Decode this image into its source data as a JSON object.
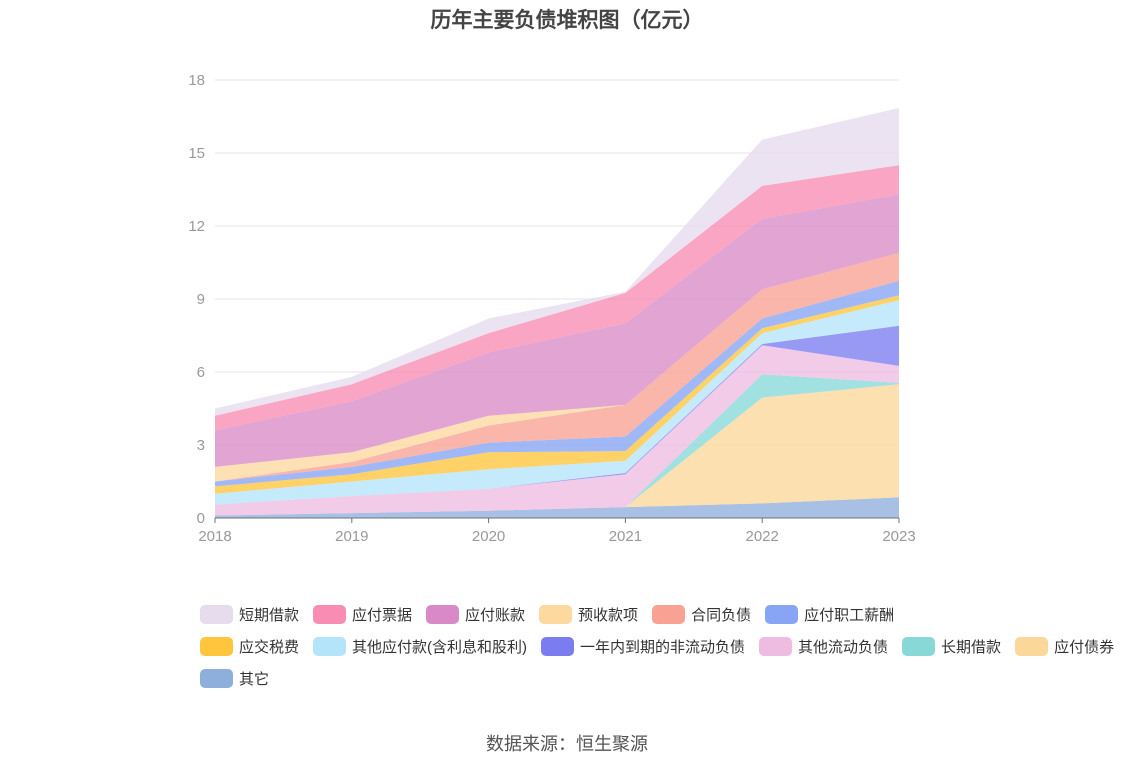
{
  "chart_data": {
    "type": "area",
    "title": "历年主要负债堆积图（亿元）",
    "source": "数据来源：恒生聚源",
    "categories": [
      "2018",
      "2019",
      "2020",
      "2021",
      "2022",
      "2023"
    ],
    "ylim": [
      0,
      18
    ],
    "yticks": [
      "0",
      "3",
      "6",
      "9",
      "12",
      "15",
      "18"
    ],
    "grid": true,
    "legend_position": "bottom",
    "series": [
      {
        "name": "其它",
        "color": "#8eaedb",
        "values": [
          0.1,
          0.2,
          0.3,
          0.45,
          0.6,
          0.85
        ]
      },
      {
        "name": "应付债券",
        "color": "#fcd79a",
        "values": [
          0,
          0,
          0,
          0,
          4.35,
          4.65
        ]
      },
      {
        "name": "长期借款",
        "color": "#88d8d8",
        "values": [
          0,
          0,
          0,
          0,
          0.95,
          0.05
        ]
      },
      {
        "name": "其他流动负债",
        "color": "#edbce0",
        "values": [
          0.45,
          0.7,
          0.9,
          1.35,
          1.2,
          0.7
        ]
      },
      {
        "name": "一年内到期的非流动负债",
        "color": "#7b7cf0",
        "values": [
          0,
          0,
          0,
          0.05,
          0.05,
          1.65
        ]
      },
      {
        "name": "其他应付款(含利息和股利)",
        "color": "#b4e4fa",
        "values": [
          0.45,
          0.6,
          0.8,
          0.5,
          0.45,
          1.05
        ]
      },
      {
        "name": "应交税费",
        "color": "#ffc53d",
        "values": [
          0.3,
          0.3,
          0.7,
          0.4,
          0.2,
          0.2
        ]
      },
      {
        "name": "应付职工薪酬",
        "color": "#87a4f5",
        "values": [
          0.2,
          0.3,
          0.4,
          0.6,
          0.4,
          0.6
        ]
      },
      {
        "name": "合同负债",
        "color": "#f9a192",
        "values": [
          0,
          0.2,
          0.7,
          1.3,
          1.2,
          1.15
        ]
      },
      {
        "name": "预收款项",
        "color": "#fdd9a0",
        "values": [
          0.6,
          0.4,
          0.4,
          0,
          0,
          0
        ]
      },
      {
        "name": "应付账款",
        "color": "#d98ac6",
        "values": [
          1.5,
          2.1,
          2.6,
          3.35,
          2.9,
          2.4
        ]
      },
      {
        "name": "应付票据",
        "color": "#f98cb3",
        "values": [
          0.6,
          0.7,
          0.8,
          1.25,
          1.35,
          1.2
        ]
      },
      {
        "name": "短期借款",
        "color": "#e7dbee",
        "values": [
          0.3,
          0.3,
          0.6,
          0.05,
          1.9,
          2.35
        ]
      }
    ],
    "legend_order": [
      "短期借款",
      "应付票据",
      "应付账款",
      "预收款项",
      "合同负债",
      "应付职工薪酬",
      "应交税费",
      "其他应付款(含利息和股利)",
      "一年内到期的非流动负债",
      "其他流动负债",
      "长期借款",
      "应付债券",
      "其它"
    ]
  }
}
